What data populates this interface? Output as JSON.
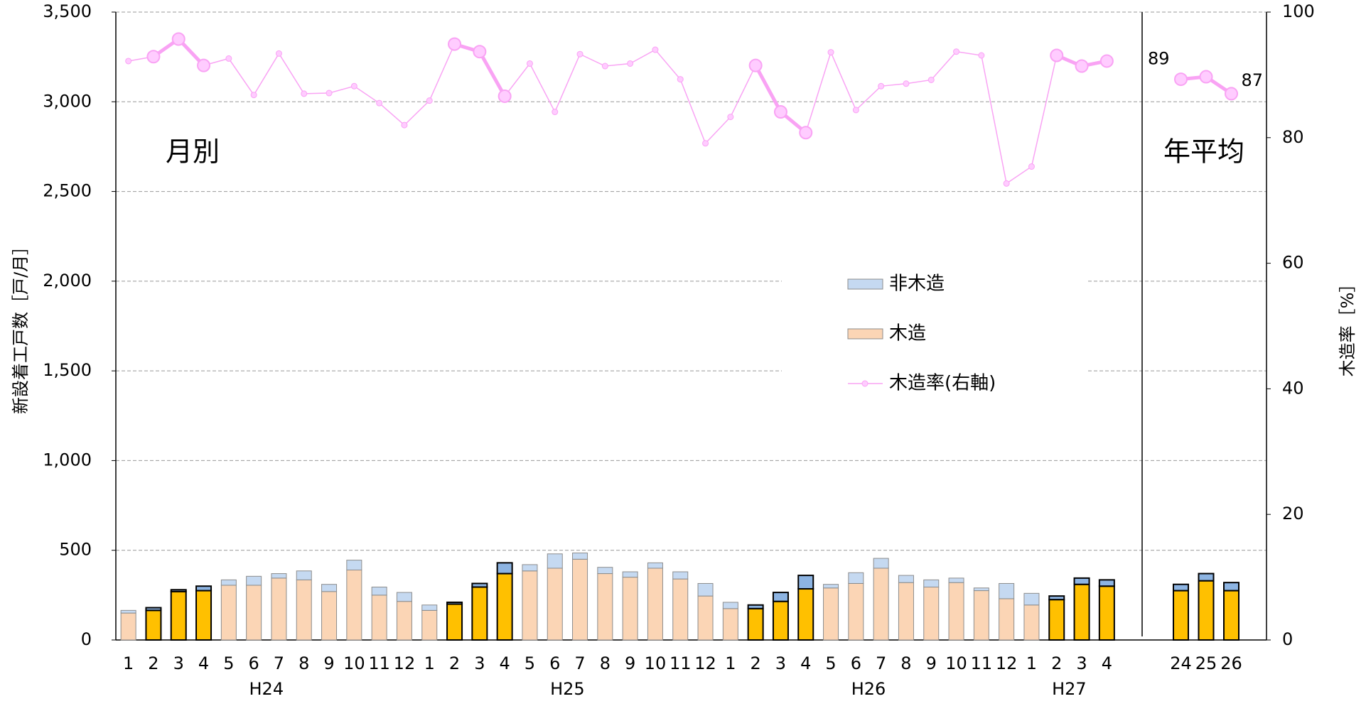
{
  "chart_data": [
    {
      "type": "bar",
      "annotation": "月別",
      "ylabel": "新設着工戸数［戸/月］",
      "y2label": "木造率［%］",
      "ylim": [
        0,
        3500
      ],
      "yticks": [
        0,
        {
          "value": 500,
          "label": "500"
        },
        {
          "value": 1000,
          "label": "1,000"
        },
        {
          "value": 1500,
          "label": "1,500"
        },
        {
          "value": 2000,
          "label": "2,000"
        },
        {
          "value": 2500,
          "label": "2,500"
        },
        {
          "value": 3000,
          "label": "3,000"
        },
        {
          "value": 3500,
          "label": "3,500"
        }
      ],
      "y2lim": [
        0,
        100
      ],
      "y2ticks": [
        0,
        20,
        40,
        60,
        80,
        100
      ],
      "grid": true,
      "groups": [
        {
          "name": "H24",
          "categories": [
            "1",
            "2",
            "3",
            "4",
            "5",
            "6",
            "7",
            "8",
            "9",
            "10",
            "11",
            "12"
          ]
        },
        {
          "name": "H25",
          "categories": [
            "1",
            "2",
            "3",
            "4",
            "5",
            "6",
            "7",
            "8",
            "9",
            "10",
            "11",
            "12"
          ]
        },
        {
          "name": "H26",
          "categories": [
            "1",
            "2",
            "3",
            "4",
            "5",
            "6",
            "7",
            "8",
            "9",
            "10",
            "11",
            "12"
          ]
        },
        {
          "name": "H27",
          "categories": [
            "1",
            "2",
            "3",
            "4"
          ]
        }
      ],
      "highlight_categories": [
        "2",
        "3",
        "4"
      ],
      "series": [
        {
          "name": "非木造",
          "color": "#c5d9f1",
          "highlight_color": "#8db4e2",
          "values": [
            15,
            15,
            10,
            25,
            30,
            50,
            25,
            50,
            40,
            55,
            45,
            50,
            30,
            10,
            20,
            60,
            35,
            80,
            35,
            35,
            30,
            30,
            40,
            70,
            35,
            20,
            50,
            75,
            20,
            60,
            55,
            40,
            40,
            25,
            15,
            85,
            65,
            20,
            35,
            35
          ]
        },
        {
          "name": "木造",
          "color": "#fbd5b5",
          "highlight_color": "#ffc000",
          "values": [
            150,
            165,
            270,
            275,
            305,
            305,
            345,
            335,
            270,
            390,
            250,
            215,
            165,
            200,
            295,
            370,
            385,
            400,
            450,
            370,
            350,
            400,
            340,
            245,
            175,
            175,
            215,
            285,
            290,
            315,
            400,
            320,
            295,
            320,
            275,
            230,
            195,
            225,
            310,
            300
          ]
        },
        {
          "name": "木造率(右軸)",
          "type": "line",
          "axis": "y2",
          "color": "#f9a3f4",
          "values": [
            92.2,
            92.9,
            95.7,
            91.5,
            92.6,
            86.8,
            93.4,
            87,
            87.1,
            88.2,
            85.5,
            82,
            85.9,
            94.9,
            93.7,
            86.6,
            91.8,
            84.1,
            93.3,
            91.4,
            91.8,
            94,
            89.3,
            79.1,
            83.3,
            91.5,
            84.1,
            80.8,
            93.6,
            84.4,
            88.2,
            88.6,
            89.2,
            93.7,
            93.1,
            72.7,
            75.4,
            93.1,
            91.4,
            92.2
          ]
        }
      ]
    },
    {
      "type": "bar",
      "annotation": "年平均",
      "categories": [
        "24",
        "25",
        "26"
      ],
      "series": [
        {
          "color": "#8db4e2",
          "values": [
            35,
            40,
            45
          ]
        },
        {
          "color": "#ffc000",
          "values": [
            275,
            330,
            275
          ]
        },
        {
          "type": "line",
          "axis": "y2",
          "color": "#f9a3f4",
          "values": [
            89.3,
            89.7,
            87
          ],
          "value_labels": [
            "89",
            null,
            "87"
          ]
        }
      ]
    }
  ]
}
